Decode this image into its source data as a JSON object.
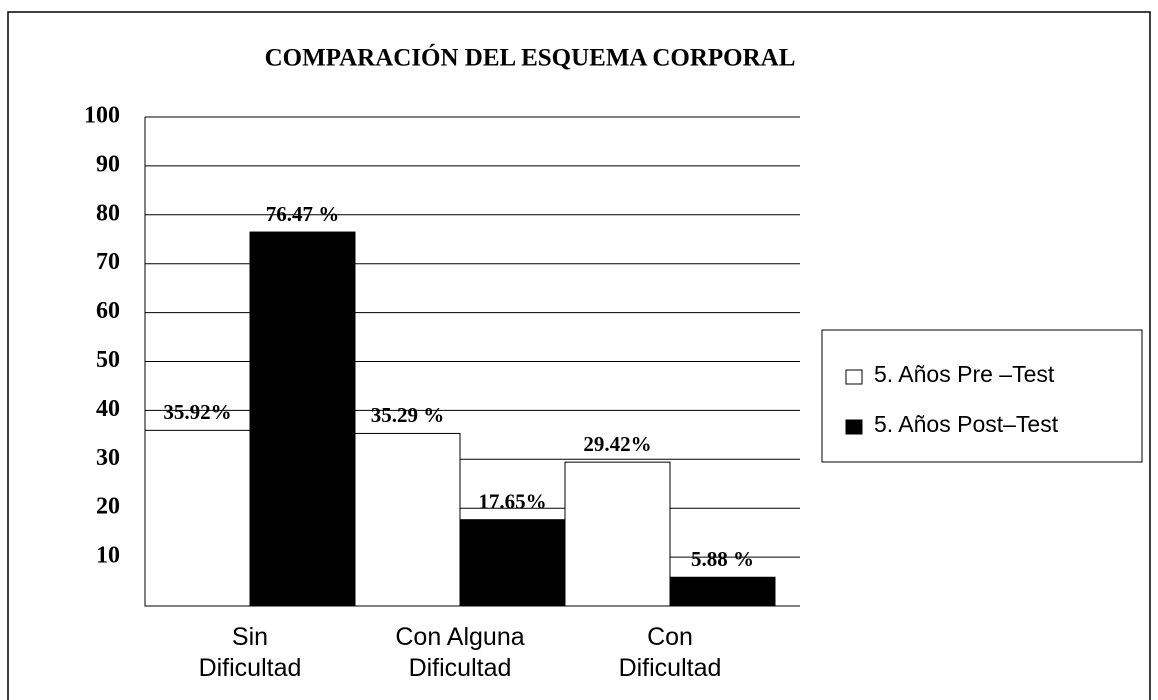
{
  "chart_data": {
    "type": "bar",
    "title": "COMPARACIÓN DEL ESQUEMA CORPORAL",
    "categories": [
      "Sin\nDificultad",
      "Con Alguna\nDificultad",
      "Con\nDificultad"
    ],
    "series": [
      {
        "name": "5. Años Pre –Test",
        "color": "#ffffff",
        "values": [
          35.92,
          35.29,
          29.42
        ],
        "value_labels": [
          "35.92%",
          "35.29 %",
          "29.42%"
        ]
      },
      {
        "name": "5. Años Post–Test",
        "color": "#000000",
        "values": [
          76.47,
          17.65,
          5.88
        ],
        "value_labels": [
          "76.47 %",
          "17.65%",
          "5.88 %"
        ]
      }
    ],
    "ylim": [
      0,
      100
    ],
    "yticks": [
      10,
      20,
      30,
      40,
      50,
      60,
      70,
      80,
      90,
      100
    ],
    "grid": true,
    "legend": "right"
  }
}
